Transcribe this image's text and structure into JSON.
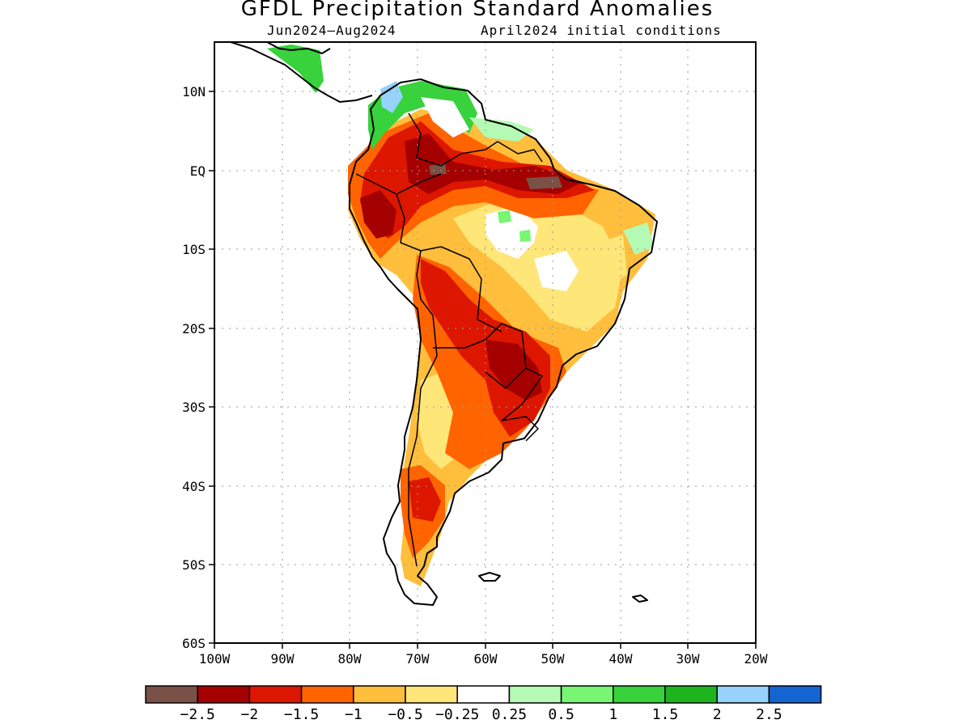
{
  "title": "GFDL Precipitation Standard Anomalies",
  "subtitle_left": "Jun2024–Aug2024",
  "subtitle_right": "April2024 initial conditions",
  "lat_labels": [
    "10N",
    "EQ",
    "10S",
    "20S",
    "30S",
    "40S",
    "50S",
    "60S"
  ],
  "lon_labels": [
    "100W",
    "90W",
    "80W",
    "70W",
    "60W",
    "50W",
    "40W",
    "30W",
    "20W"
  ],
  "colorbar": {
    "colors": [
      "#7a5146",
      "#a50000",
      "#dd1600",
      "#ff6400",
      "#ffbe3c",
      "#ffe678",
      "#ffffff",
      "#b4fab4",
      "#78f573",
      "#37d23c",
      "#1eb41e",
      "#96d2fa",
      "#1464d2"
    ],
    "labels": [
      "−2.5",
      "−2",
      "−1.5",
      "−1",
      "−0.5",
      "−0.25",
      "0.25",
      "0.5",
      "1",
      "1.5",
      "2",
      "2.5"
    ]
  }
}
